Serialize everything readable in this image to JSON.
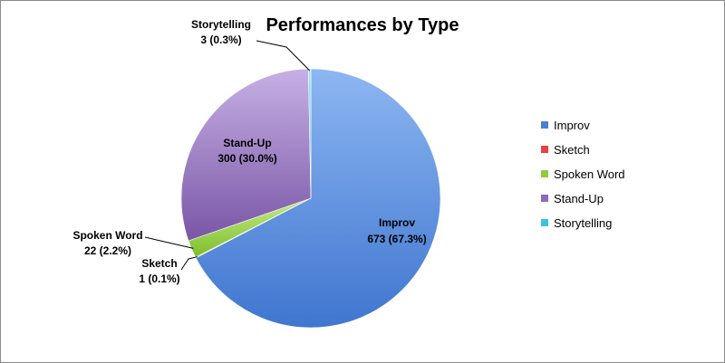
{
  "chart_data": {
    "type": "pie",
    "title": "Performances by Type",
    "slices": [
      {
        "label": "Improv",
        "value": 673,
        "percent_label": "673 (67.3%)",
        "color": "#4A7FD4"
      },
      {
        "label": "Sketch",
        "value": 1,
        "percent_label": "1 (0.1%)",
        "color": "#E8423F"
      },
      {
        "label": "Spoken Word",
        "value": 22,
        "percent_label": "22 (2.2%)",
        "color": "#8FCB3A"
      },
      {
        "label": "Stand-Up",
        "value": 300,
        "percent_label": "300 (30.0%)",
        "color": "#8E6BB8"
      },
      {
        "label": "Storytelling",
        "value": 3,
        "percent_label": "3 (0.3%)",
        "color": "#3BC3DB"
      }
    ],
    "legend": {
      "placement": "right",
      "entries": [
        "Improv",
        "Sketch",
        "Spoken Word",
        "Stand-Up",
        "Storytelling"
      ]
    }
  }
}
